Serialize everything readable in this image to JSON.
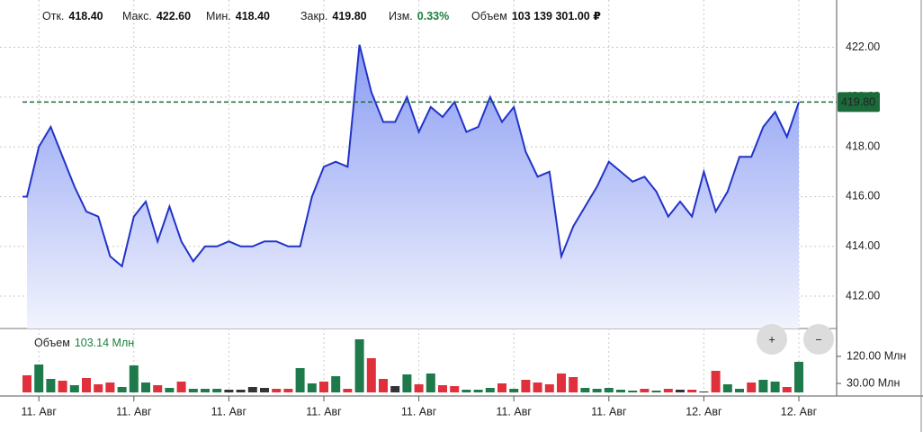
{
  "header": {
    "stats": [
      {
        "label": "Отк.",
        "value": "418.40"
      },
      {
        "label": "Макс.",
        "value": "422.60"
      },
      {
        "label": "Мин.",
        "value": "418.40"
      },
      {
        "label": "Закр.",
        "value": "419.80"
      },
      {
        "label": "Изм.",
        "value": "0.33%",
        "color": "#1a7f3c"
      },
      {
        "label": "Объем",
        "value": "103 139 301.00 ₽"
      }
    ]
  },
  "controls": [
    "+",
    "−"
  ],
  "chart_data": [
    {
      "type": "area",
      "color": "#2233c8",
      "categories": [
        null,
        "11. Авг",
        null,
        null,
        null,
        null,
        null,
        null,
        null,
        "11. Авг",
        null,
        null,
        null,
        null,
        null,
        null,
        null,
        "11. Авг",
        null,
        null,
        null,
        null,
        null,
        null,
        null,
        "11. Авг",
        null,
        null,
        null,
        null,
        null,
        null,
        null,
        "11. Авг",
        null,
        null,
        null,
        null,
        null,
        null,
        null,
        "11. Авг",
        null,
        null,
        null,
        null,
        null,
        null,
        null,
        "11. Авг",
        null,
        null,
        null,
        null,
        null,
        null,
        null,
        "12. Авг",
        null,
        null,
        null,
        null,
        null,
        null,
        null,
        "12. Авг"
      ],
      "values": [
        416.0,
        418.0,
        418.8,
        417.6,
        416.4,
        415.4,
        415.2,
        413.6,
        413.2,
        415.2,
        415.8,
        414.2,
        415.6,
        414.2,
        413.4,
        414.0,
        414.0,
        414.2,
        414.0,
        414.0,
        414.2,
        414.2,
        414.0,
        414.0,
        416.0,
        417.2,
        417.4,
        417.2,
        422.1,
        420.2,
        419.0,
        419.0,
        420.0,
        418.6,
        419.6,
        419.2,
        419.8,
        418.6,
        418.8,
        420.0,
        419.0,
        419.6,
        417.8,
        416.8,
        417.0,
        413.6,
        414.8,
        415.6,
        416.4,
        417.4,
        417.0,
        416.6,
        416.8,
        416.2,
        415.2,
        415.8,
        415.2,
        417.0,
        415.4,
        416.2,
        417.6,
        417.6,
        418.8,
        419.4,
        418.4,
        419.8
      ],
      "ylim": [
        410.7,
        423.9
      ],
      "yticks": [
        {
          "value": 412,
          "label": "412.00"
        },
        {
          "value": 414,
          "label": "414.00"
        },
        {
          "value": 416,
          "label": "416.00"
        },
        {
          "value": 418,
          "label": "418.00"
        },
        {
          "value": 420,
          "label": "420.00"
        },
        {
          "value": 422,
          "label": "422.00"
        }
      ],
      "grid": true,
      "last_price": {
        "value": 419.8,
        "label": "419.80"
      }
    },
    {
      "type": "bar",
      "title": "Объем",
      "subtitle": "103.14 Млн",
      "values": [
        57,
        93,
        45,
        39,
        24,
        48,
        27,
        33,
        18,
        90,
        33,
        24,
        15,
        36,
        12,
        12,
        12,
        9,
        9,
        18,
        15,
        12,
        12,
        81,
        30,
        36,
        54,
        12,
        177,
        114,
        45,
        21,
        60,
        27,
        63,
        24,
        21,
        9,
        9,
        15,
        30,
        12,
        42,
        33,
        27,
        63,
        51,
        15,
        12,
        15,
        9,
        6,
        12,
        6,
        12,
        9,
        9,
        3,
        72,
        27,
        12,
        33,
        42,
        36,
        18,
        102
      ],
      "colors": [
        "#e0303b",
        "#1e7a4b",
        "#1e7a4b",
        "#e0303b",
        "#1e7a4b",
        "#e0303b",
        "#e0303b",
        "#e0303b",
        "#1e7a4b",
        "#1e7a4b",
        "#1e7a4b",
        "#e0303b",
        "#1e7a4b",
        "#e0303b",
        "#1e7a4b",
        "#1e7a4b",
        "#1e7a4b",
        "#333333",
        "#333333",
        "#333333",
        "#333333",
        "#e0303b",
        "#e0303b",
        "#1e7a4b",
        "#1e7a4b",
        "#e0303b",
        "#1e7a4b",
        "#e0303b",
        "#1e7a4b",
        "#e0303b",
        "#e0303b",
        "#333333",
        "#1e7a4b",
        "#e0303b",
        "#1e7a4b",
        "#e0303b",
        "#e0303b",
        "#1e7a4b",
        "#1e7a4b",
        "#1e7a4b",
        "#e0303b",
        "#1e7a4b",
        "#e0303b",
        "#e0303b",
        "#e0303b",
        "#e0303b",
        "#e0303b",
        "#1e7a4b",
        "#1e7a4b",
        "#1e7a4b",
        "#1e7a4b",
        "#1e7a4b",
        "#e0303b",
        "#1e7a4b",
        "#e0303b",
        "#333333",
        "#e0303b",
        "#333333",
        "#e0303b",
        "#1e7a4b",
        "#1e7a4b",
        "#e0303b",
        "#1e7a4b",
        "#1e7a4b",
        "#e0303b",
        "#1e7a4b"
      ],
      "ylim": [
        0,
        198
      ],
      "yticks": [
        {
          "value": 30,
          "label": "30.00 Млн"
        },
        {
          "value": 120,
          "label": "120.00 Млн"
        }
      ]
    }
  ]
}
